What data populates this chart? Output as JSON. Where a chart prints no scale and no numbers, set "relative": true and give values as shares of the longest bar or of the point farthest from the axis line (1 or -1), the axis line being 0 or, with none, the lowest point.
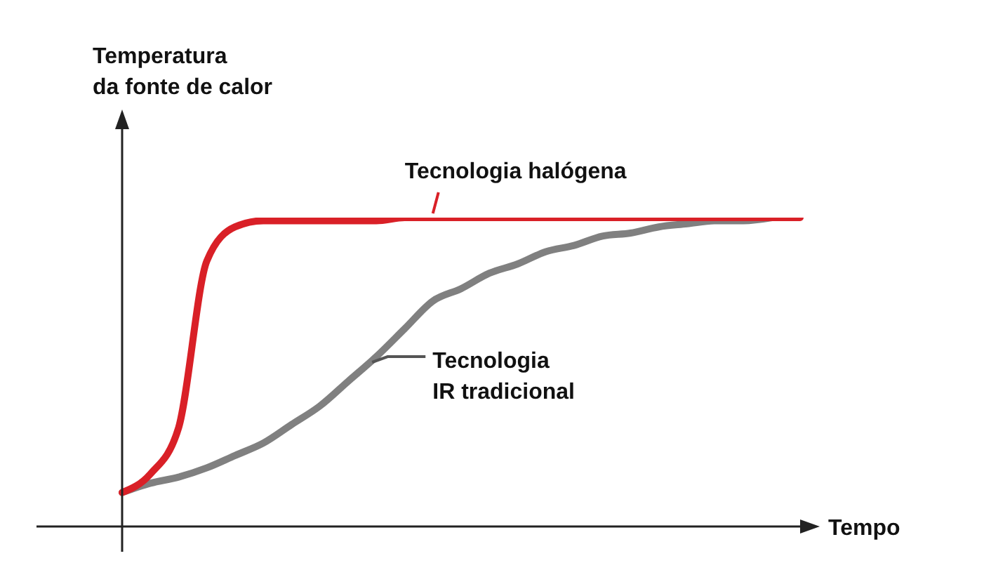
{
  "chart_data": {
    "type": "line",
    "relative": true,
    "annotations": [
      "Temperatura da fonte de calor"
    ],
    "xlabel": "Tempo",
    "legend": false,
    "marker": "none",
    "line_style": "solid",
    "grid": false,
    "tick_labels": false,
    "categories": [
      null,
      null,
      null,
      null,
      null,
      null,
      null,
      null,
      null,
      null,
      null,
      null,
      null,
      null,
      null,
      null,
      null,
      null,
      null,
      null,
      null,
      null,
      null,
      null,
      null
    ],
    "series": [
      {
        "name": "Tecnologia halógena",
        "color": "#d92027",
        "values": [
          0.11,
          0.17,
          0.32,
          0.86,
          0.97,
          0.99,
          0.99,
          0.99,
          0.99,
          0.99,
          1,
          1,
          1,
          1,
          1,
          1,
          1,
          1,
          1,
          1,
          1,
          1,
          1,
          1,
          1
        ]
      },
      {
        "name": "Tecnologia IR tradicional",
        "color": "#808080",
        "values": [
          0.11,
          0.14,
          0.16,
          0.19,
          0.23,
          0.27,
          0.33,
          0.39,
          0.47,
          0.55,
          0.64,
          0.73,
          0.77,
          0.82,
          0.85,
          0.89,
          0.91,
          0.94,
          0.95,
          0.97,
          0.98,
          0.99,
          0.99,
          1,
          null
        ]
      }
    ]
  }
}
